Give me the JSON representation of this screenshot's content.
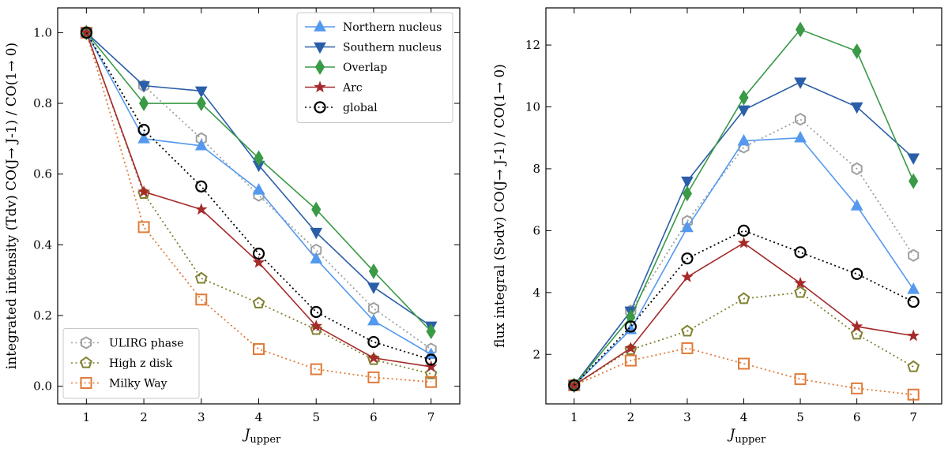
{
  "chart_data": [
    {
      "type": "line",
      "panel": "left",
      "title": "",
      "xlabel_main": "J",
      "xlabel_sub": "upper",
      "ylabel": "integrated intensity (Tdv) CO(J→ J-1) / CO(1→ 0)",
      "x": [
        1,
        2,
        3,
        4,
        5,
        6,
        7
      ],
      "xlim": [
        0.5,
        7.5
      ],
      "ylim": [
        -0.05,
        1.07
      ],
      "xticks": [
        "1",
        "2",
        "3",
        "4",
        "5",
        "6",
        "7"
      ],
      "yticks": [
        "0.0",
        "0.2",
        "0.4",
        "0.6",
        "0.8",
        "1.0"
      ],
      "ytick_values": [
        0.0,
        0.2,
        0.4,
        0.6,
        0.8,
        1.0
      ],
      "series": [
        {
          "name": "ULIRG phase",
          "values": [
            1.0,
            0.85,
            0.7,
            0.54,
            0.385,
            0.22,
            0.105
          ]
        },
        {
          "name": "High z disk",
          "values": [
            1.0,
            0.545,
            0.305,
            0.235,
            0.16,
            0.075,
            0.035
          ]
        },
        {
          "name": "Milky Way",
          "values": [
            1.0,
            0.45,
            0.245,
            0.105,
            0.048,
            0.025,
            0.012
          ]
        },
        {
          "name": "Northern nucleus",
          "values": [
            1.0,
            0.7,
            0.68,
            0.555,
            0.36,
            0.185,
            0.09
          ]
        },
        {
          "name": "Southern nucleus",
          "values": [
            1.0,
            0.85,
            0.835,
            0.625,
            0.435,
            0.28,
            0.17
          ]
        },
        {
          "name": "Overlap",
          "values": [
            1.0,
            0.8,
            0.8,
            0.645,
            0.5,
            0.325,
            0.155
          ]
        },
        {
          "name": "Arc",
          "values": [
            1.0,
            0.55,
            0.5,
            0.35,
            0.17,
            0.08,
            0.055
          ]
        },
        {
          "name": "global",
          "values": [
            1.0,
            0.725,
            0.565,
            0.375,
            0.21,
            0.125,
            0.075
          ]
        }
      ],
      "legends": [
        {
          "placement": "upper-right",
          "entries": [
            "Northern nucleus",
            "Southern nucleus",
            "Overlap",
            "Arc",
            "global"
          ]
        },
        {
          "placement": "lower-left",
          "entries": [
            "ULIRG phase",
            "High z disk",
            "Milky Way"
          ]
        }
      ]
    },
    {
      "type": "line",
      "panel": "right",
      "title": "",
      "xlabel_main": "J",
      "xlabel_sub": "upper",
      "ylabel": "flux integral (Sνdv) CO(J→ J-1) / CO(1→ 0)",
      "x": [
        1,
        2,
        3,
        4,
        5,
        6,
        7
      ],
      "xlim": [
        0.5,
        7.5
      ],
      "ylim": [
        0.4,
        13.2
      ],
      "xticks": [
        "1",
        "2",
        "3",
        "4",
        "5",
        "6",
        "7"
      ],
      "yticks": [
        "2",
        "4",
        "6",
        "8",
        "10",
        "12"
      ],
      "ytick_values": [
        2,
        4,
        6,
        8,
        10,
        12
      ],
      "series": [
        {
          "name": "ULIRG phase",
          "values": [
            1.0,
            3.4,
            6.3,
            8.7,
            9.6,
            8.0,
            5.2
          ]
        },
        {
          "name": "High z disk",
          "values": [
            1.0,
            2.15,
            2.75,
            3.8,
            4.0,
            2.65,
            1.6
          ]
        },
        {
          "name": "Milky Way",
          "values": [
            1.0,
            1.8,
            2.2,
            1.7,
            1.2,
            0.9,
            0.7
          ]
        },
        {
          "name": "Northern nucleus",
          "values": [
            1.0,
            2.8,
            6.1,
            8.9,
            9.0,
            6.8,
            4.1
          ]
        },
        {
          "name": "Southern nucleus",
          "values": [
            1.0,
            3.4,
            7.6,
            9.9,
            10.8,
            10.0,
            8.35
          ]
        },
        {
          "name": "Overlap",
          "values": [
            1.0,
            3.2,
            7.2,
            10.3,
            12.5,
            11.8,
            7.6
          ]
        },
        {
          "name": "Arc",
          "values": [
            1.0,
            2.2,
            4.5,
            5.6,
            4.3,
            2.9,
            2.6
          ]
        },
        {
          "name": "global",
          "values": [
            1.0,
            2.9,
            5.1,
            6.0,
            5.3,
            4.6,
            3.7
          ]
        }
      ]
    }
  ],
  "styles": {
    "ULIRG phase": {
      "color": "#a0a0a0",
      "marker": "hexagon-open",
      "dash": "dotted"
    },
    "High z disk": {
      "color": "#808030",
      "marker": "pentagon-open",
      "dash": "dotted"
    },
    "Milky Way": {
      "color": "#e07b39",
      "marker": "square-open",
      "dash": "dotted"
    },
    "Northern nucleus": {
      "color": "#5599ee",
      "marker": "triangle-up",
      "dash": "solid"
    },
    "Southern nucleus": {
      "color": "#2b5ea8",
      "marker": "triangle-down",
      "dash": "solid"
    },
    "Overlap": {
      "color": "#3a9a46",
      "marker": "diamond",
      "dash": "solid"
    },
    "Arc": {
      "color": "#a52a2a",
      "marker": "star",
      "dash": "solid"
    },
    "global": {
      "color": "#000000",
      "marker": "circle-open",
      "dash": "dotted"
    }
  }
}
